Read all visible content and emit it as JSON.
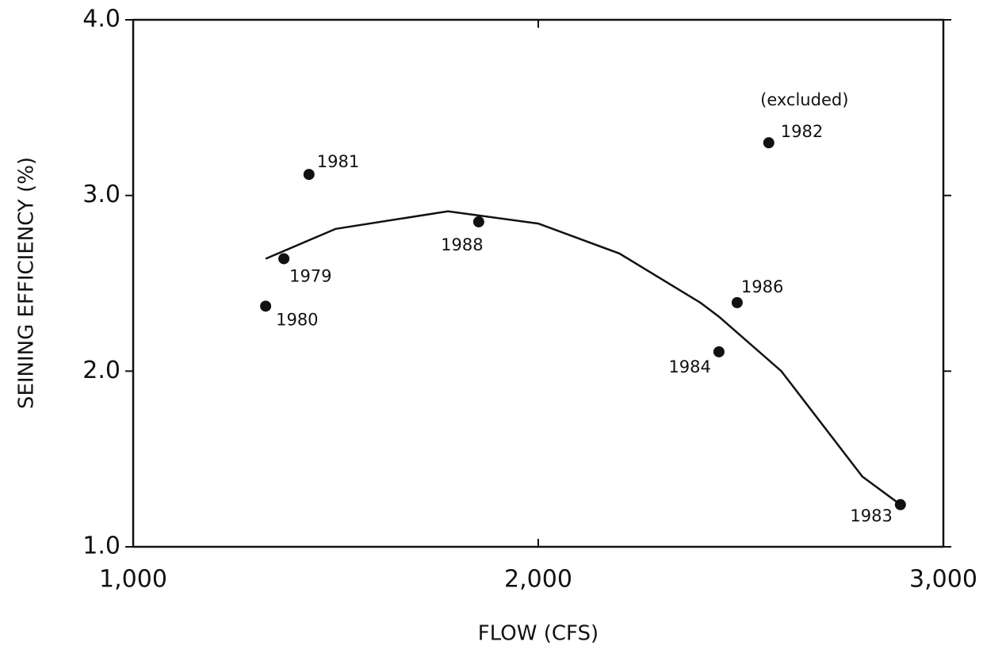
{
  "chart_data": {
    "type": "scatter",
    "xlabel": "FLOW (CFS)",
    "ylabel": "SEINING EFFICIENCY (%)",
    "xlim": [
      1000,
      3000
    ],
    "ylim": [
      1.0,
      4.0
    ],
    "xticks": [
      {
        "value": 1000,
        "label": "1,000"
      },
      {
        "value": 2000,
        "label": "2,000"
      },
      {
        "value": 3000,
        "label": "3,000"
      }
    ],
    "yticks": [
      {
        "value": 1.0,
        "label": "1.0"
      },
      {
        "value": 2.0,
        "label": "2.0"
      },
      {
        "value": 3.0,
        "label": "3.0"
      },
      {
        "value": 4.0,
        "label": "4.0"
      }
    ],
    "points": {
      "labels": [
        "1979",
        "1980",
        "1981",
        "1988",
        "1984",
        "1986",
        "1982",
        "1983"
      ],
      "x": [
        1372,
        1327,
        1434,
        1853,
        2446,
        2491,
        2569,
        2894
      ],
      "values": [
        2.64,
        2.37,
        3.12,
        2.85,
        2.11,
        2.39,
        3.3,
        1.24
      ],
      "color": "#111111"
    },
    "fit": {
      "x": [
        1327,
        1500,
        1777,
        2000,
        2200,
        2400,
        2446,
        2600,
        2800,
        2894
      ],
      "values": [
        2.64,
        2.81,
        2.91,
        2.84,
        2.67,
        2.39,
        2.31,
        2.0,
        1.4,
        1.24
      ],
      "color": "#111111"
    },
    "annotation": "(excluded)"
  }
}
